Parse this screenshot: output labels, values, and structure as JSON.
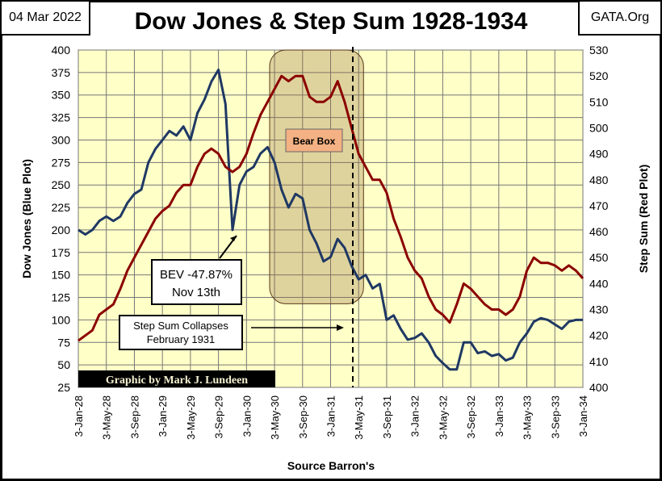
{
  "header": {
    "date": "04 Mar 2022",
    "source": "GATA.Org"
  },
  "chart_data": {
    "type": "line",
    "title": "Dow Jones & Step Sum 1928-1934",
    "xlabel": "Source Barron's",
    "ylabel": "Dow Jones  (Blue Plot)",
    "y2label": "Step Sum  (Red Plot)",
    "ylim": [
      25,
      400
    ],
    "y2lim": [
      400,
      530
    ],
    "yticks": [
      "400",
      "375",
      "350",
      "325",
      "300",
      "275",
      "250",
      "225",
      "200",
      "175",
      "150",
      "125",
      "100",
      "75",
      "50",
      "25"
    ],
    "y2ticks": [
      "530",
      "520",
      "510",
      "500",
      "490",
      "480",
      "470",
      "460",
      "450",
      "440",
      "430",
      "420",
      "410",
      "400"
    ],
    "xticks": [
      "3-Jan-28",
      "3-May-28",
      "3-Sep-28",
      "3-Jan-29",
      "3-May-29",
      "3-Sep-29",
      "3-Jan-30",
      "3-May-30",
      "3-Sep-30",
      "3-Jan-31",
      "3-May-31",
      "3-Sep-31",
      "3-Jan-32",
      "3-May-32",
      "3-Sep-32",
      "3-Jan-33",
      "3-May-33",
      "3-Sep-33",
      "3-Jan-34"
    ],
    "grid": true,
    "plot_background": "#ffffc8",
    "x_monthly_from": "Jan-1928",
    "series": [
      {
        "name": "Dow Jones",
        "axis": "left",
        "color": "#1f3864",
        "values": [
          200,
          195,
          200,
          210,
          215,
          210,
          215,
          230,
          240,
          245,
          275,
          290,
          300,
          310,
          305,
          315,
          300,
          330,
          345,
          365,
          378,
          340,
          200,
          250,
          265,
          270,
          285,
          292,
          275,
          245,
          225,
          240,
          235,
          200,
          185,
          165,
          170,
          190,
          180,
          160,
          145,
          150,
          135,
          140,
          100,
          105,
          90,
          78,
          80,
          85,
          75,
          60,
          52,
          45,
          45,
          75,
          75,
          63,
          65,
          60,
          62,
          55,
          58,
          75,
          85,
          98,
          102,
          100,
          95,
          90,
          98,
          100,
          100
        ]
      },
      {
        "name": "Step Sum",
        "axis": "right",
        "color": "#8b0000",
        "values": [
          418,
          420,
          422,
          428,
          430,
          432,
          438,
          445,
          450,
          455,
          460,
          465,
          468,
          470,
          475,
          478,
          478,
          485,
          490,
          492,
          490,
          485,
          483,
          485,
          490,
          498,
          505,
          510,
          515,
          520,
          518,
          520,
          520,
          512,
          510,
          510,
          512,
          518,
          510,
          500,
          490,
          485,
          480,
          480,
          475,
          465,
          458,
          450,
          445,
          442,
          435,
          430,
          428,
          425,
          432,
          440,
          438,
          435,
          432,
          430,
          430,
          428,
          430,
          435,
          445,
          450,
          448,
          448,
          447,
          445,
          447,
          445,
          442
        ]
      }
    ],
    "annotations": {
      "bear_box": "Bear Box",
      "bev": [
        "BEV -47.87%",
        "Nov 13th"
      ],
      "collapse": [
        "Step Sum Collapses",
        "February  1931"
      ],
      "credit": "Graphic by Mark J. Lundeen"
    }
  }
}
